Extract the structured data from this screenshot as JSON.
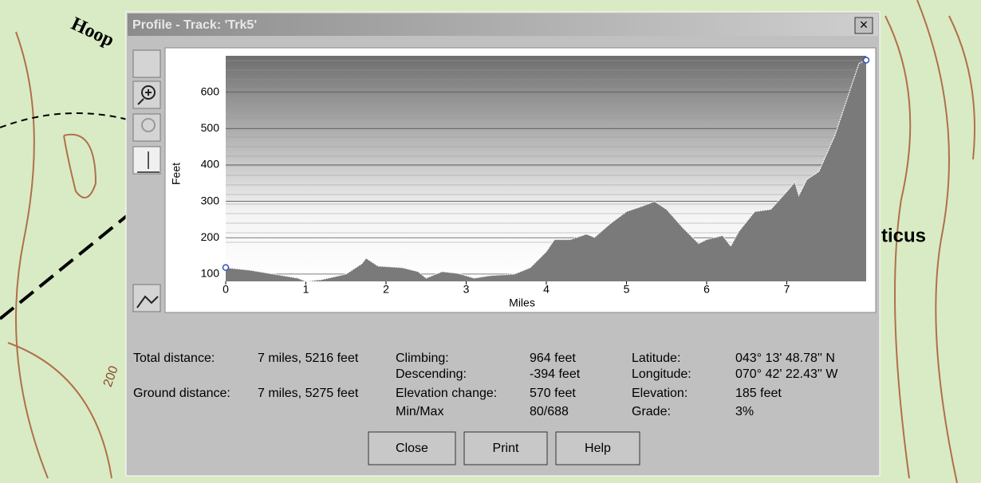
{
  "map": {
    "labels": [
      "Hoop",
      "ticus",
      "200"
    ]
  },
  "window": {
    "title": "Profile - Track: 'Trk5'",
    "close_symbol": "×"
  },
  "chart_data": {
    "type": "area",
    "x_label": "Miles",
    "y_label": "Feet",
    "x": [
      0,
      0.3,
      0.6,
      0.9,
      1.0,
      1.2,
      1.5,
      1.7,
      1.75,
      1.9,
      2.2,
      2.4,
      2.5,
      2.7,
      2.9,
      3.1,
      3.3,
      3.6,
      3.8,
      4.0,
      4.1,
      4.3,
      4.5,
      4.6,
      4.8,
      5.0,
      5.2,
      5.35,
      5.5,
      5.7,
      5.9,
      6.0,
      6.2,
      6.3,
      6.4,
      6.6,
      6.8,
      7.0,
      7.1,
      7.15,
      7.25,
      7.4,
      7.6,
      7.8,
      7.9,
      7.99
    ],
    "values": [
      118,
      111,
      100,
      89,
      80,
      85,
      100,
      129,
      144,
      122,
      118,
      107,
      89,
      107,
      102,
      89,
      96,
      100,
      118,
      162,
      195,
      195,
      210,
      201,
      239,
      272,
      287,
      300,
      278,
      228,
      184,
      195,
      206,
      177,
      217,
      272,
      278,
      327,
      353,
      316,
      360,
      382,
      481,
      613,
      679,
      688
    ],
    "color": "#7a7a7a",
    "xlim": [
      0,
      7.99
    ],
    "xticks": [
      0,
      1,
      2,
      3,
      4,
      5,
      6,
      7
    ],
    "ylim": [
      80,
      700
    ],
    "yticks": [
      100,
      200,
      300,
      400,
      500,
      600
    ]
  },
  "stats": [
    {
      "label": "Total distance:",
      "value": "7 miles, 5216 feet"
    },
    {
      "label": "Ground distance:",
      "value": "7 miles, 5275 feet"
    },
    {
      "label": "Climbing:",
      "value": "964 feet"
    },
    {
      "label": "Descending:",
      "value": "-394 feet"
    },
    {
      "label": "Elevation change:",
      "value": "570 feet"
    },
    {
      "label": "Min/Max",
      "value": "80/688"
    },
    {
      "label": "Latitude:",
      "value": "043° 13' 48.78'' N"
    },
    {
      "label": "Longitude:",
      "value": "070° 42' 22.43'' W"
    },
    {
      "label": "Elevation:",
      "value": "185 feet"
    },
    {
      "label": "Grade:",
      "value": "3%"
    }
  ],
  "buttons": [
    "Close",
    "Print",
    "Help"
  ]
}
